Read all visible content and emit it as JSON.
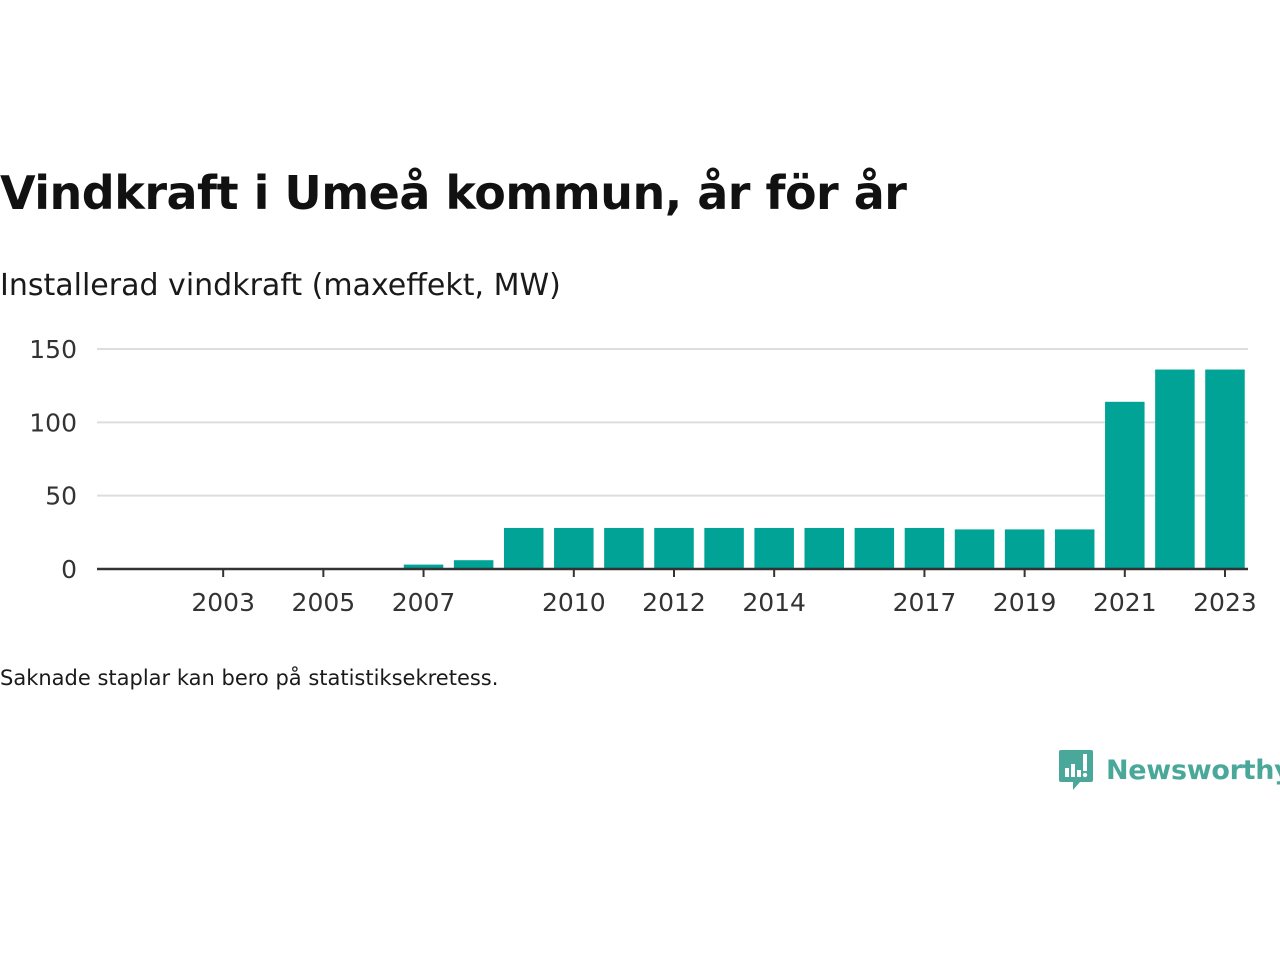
{
  "title": "Vindkraft i Umeå kommun, år för år",
  "subtitle": "Installerad vindkraft (maxeffekt, MW)",
  "note": "Saknade staplar kan bero på statistiksekretess.",
  "brand": {
    "name": "Newsworthy",
    "color": "#4aa89a",
    "icon": "newsworthy-chart-bubble-icon"
  },
  "chart_data": {
    "type": "bar",
    "categories": [
      "2001",
      "2002",
      "2003",
      "2004",
      "2005",
      "2006",
      "2007",
      "2008",
      "2009",
      "2010",
      "2011",
      "2012",
      "2013",
      "2014",
      "2015",
      "2016",
      "2017",
      "2018",
      "2019",
      "2020",
      "2021",
      "2022",
      "2023"
    ],
    "values": [
      0,
      0,
      0,
      0,
      0,
      0,
      3,
      6,
      28,
      28,
      28,
      28,
      28,
      28,
      28,
      28,
      28,
      27,
      27,
      27,
      114,
      136,
      136
    ],
    "x_tick_labels": [
      "2003",
      "2005",
      "2007",
      "2010",
      "2012",
      "2014",
      "2017",
      "2019",
      "2021",
      "2023"
    ],
    "y_ticks": [
      0,
      50,
      100,
      150
    ],
    "ylim": [
      0,
      150
    ],
    "xlabel": "",
    "ylabel": "",
    "grid": true,
    "bar_color": "#00a396",
    "grid_color": "#dddddd",
    "axis_color": "#333333"
  }
}
